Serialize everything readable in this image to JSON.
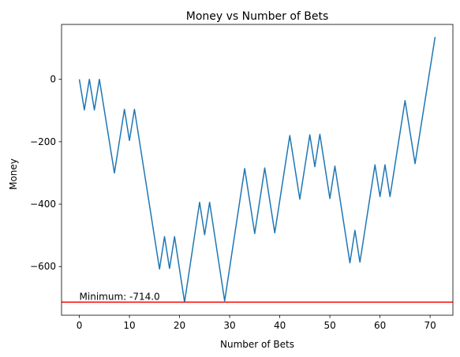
{
  "chart_data": {
    "type": "line",
    "title": "Money vs Number of Bets",
    "xlabel": "Number of Bets",
    "ylabel": "Money",
    "xlim": [
      -3.55,
      74.55
    ],
    "ylim": [
      -756,
      176
    ],
    "xticks": [
      0,
      10,
      20,
      30,
      40,
      50,
      60,
      70
    ],
    "yticks": [
      -600,
      -400,
      -200,
      0
    ],
    "ytick_labels": [
      "−600",
      "−400",
      "−200",
      "0"
    ],
    "grid": false,
    "series": [
      {
        "color": "#1f77b4",
        "points": [
          [
            0,
            0
          ],
          [
            1,
            -98
          ],
          [
            2,
            0
          ],
          [
            3,
            -98
          ],
          [
            4,
            0
          ],
          [
            7,
            -300
          ],
          [
            9,
            -96
          ],
          [
            10,
            -196
          ],
          [
            11,
            -96
          ],
          [
            16,
            -608
          ],
          [
            17,
            -504
          ],
          [
            18,
            -606
          ],
          [
            19,
            -504
          ],
          [
            21,
            -714
          ],
          [
            24,
            -394
          ],
          [
            25,
            -498
          ],
          [
            26,
            -394
          ],
          [
            29,
            -710
          ],
          [
            33,
            -286
          ],
          [
            35,
            -494
          ],
          [
            37,
            -284
          ],
          [
            39,
            -492
          ],
          [
            42,
            -180
          ],
          [
            44,
            -384
          ],
          [
            46,
            -178
          ],
          [
            47,
            -280
          ],
          [
            48,
            -176
          ],
          [
            50,
            -382
          ],
          [
            51,
            -278
          ],
          [
            54,
            -588
          ],
          [
            55,
            -484
          ],
          [
            56,
            -586
          ],
          [
            59,
            -274
          ],
          [
            60,
            -376
          ],
          [
            61,
            -274
          ],
          [
            62,
            -376
          ],
          [
            65,
            -68
          ],
          [
            67,
            -270
          ],
          [
            71,
            136
          ]
        ]
      }
    ],
    "minimum_line": {
      "value": -714,
      "color": "#ff0000",
      "label": "Minimum: -714.0"
    }
  }
}
